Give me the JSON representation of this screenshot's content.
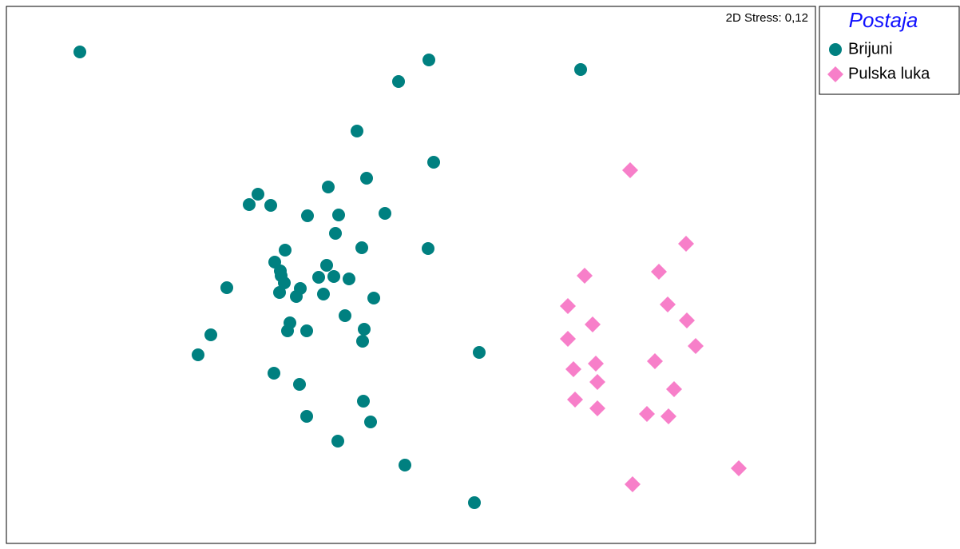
{
  "chart_data": {
    "type": "scatter",
    "annotation": "2D Stress: 0,12",
    "legend_title": "Postaja",
    "legend_position": "outside-top-right",
    "xlim": [
      0,
      1013
    ],
    "ylim": [
      0,
      672
    ],
    "series": [
      {
        "name": "Brijuni",
        "color": "#008080",
        "marker": "circle",
        "x": [
          92,
          529,
          491,
          719,
          439,
          535,
          451,
          403,
          315,
          304,
          331,
          377,
          416,
          474,
          412,
          349,
          445,
          528,
          336,
          343,
          401,
          348,
          344,
          391,
          410,
          429,
          276,
          368,
          342,
          363,
          397,
          460,
          424,
          355,
          352,
          376,
          448,
          256,
          446,
          592,
          240,
          335,
          367,
          447,
          376,
          456,
          415,
          499,
          586
        ],
        "y": [
          615,
          605,
          578,
          593,
          516,
          477,
          457,
          446,
          437,
          424,
          423,
          410,
          411,
          413,
          388,
          367,
          370,
          369,
          352,
          341,
          348,
          326,
          335,
          333,
          334,
          331,
          320,
          319,
          314,
          309,
          312,
          307,
          285,
          276,
          266,
          266,
          268,
          261,
          253,
          239,
          236,
          213,
          199,
          178,
          159,
          152,
          128,
          98,
          51
        ]
      },
      {
        "name": "Pulska luka",
        "color": "#f77fc9",
        "marker": "diamond",
        "x": [
          781,
          851,
          724,
          817,
          703,
          828,
          734,
          852,
          703,
          863,
          738,
          812,
          710,
          740,
          836,
          712,
          740,
          802,
          829,
          917,
          784
        ],
        "y": [
          467,
          375,
          335,
          340,
          297,
          299,
          274,
          279,
          256,
          247,
          225,
          228,
          218,
          202,
          193,
          180,
          169,
          162,
          159,
          94,
          74
        ]
      }
    ]
  }
}
